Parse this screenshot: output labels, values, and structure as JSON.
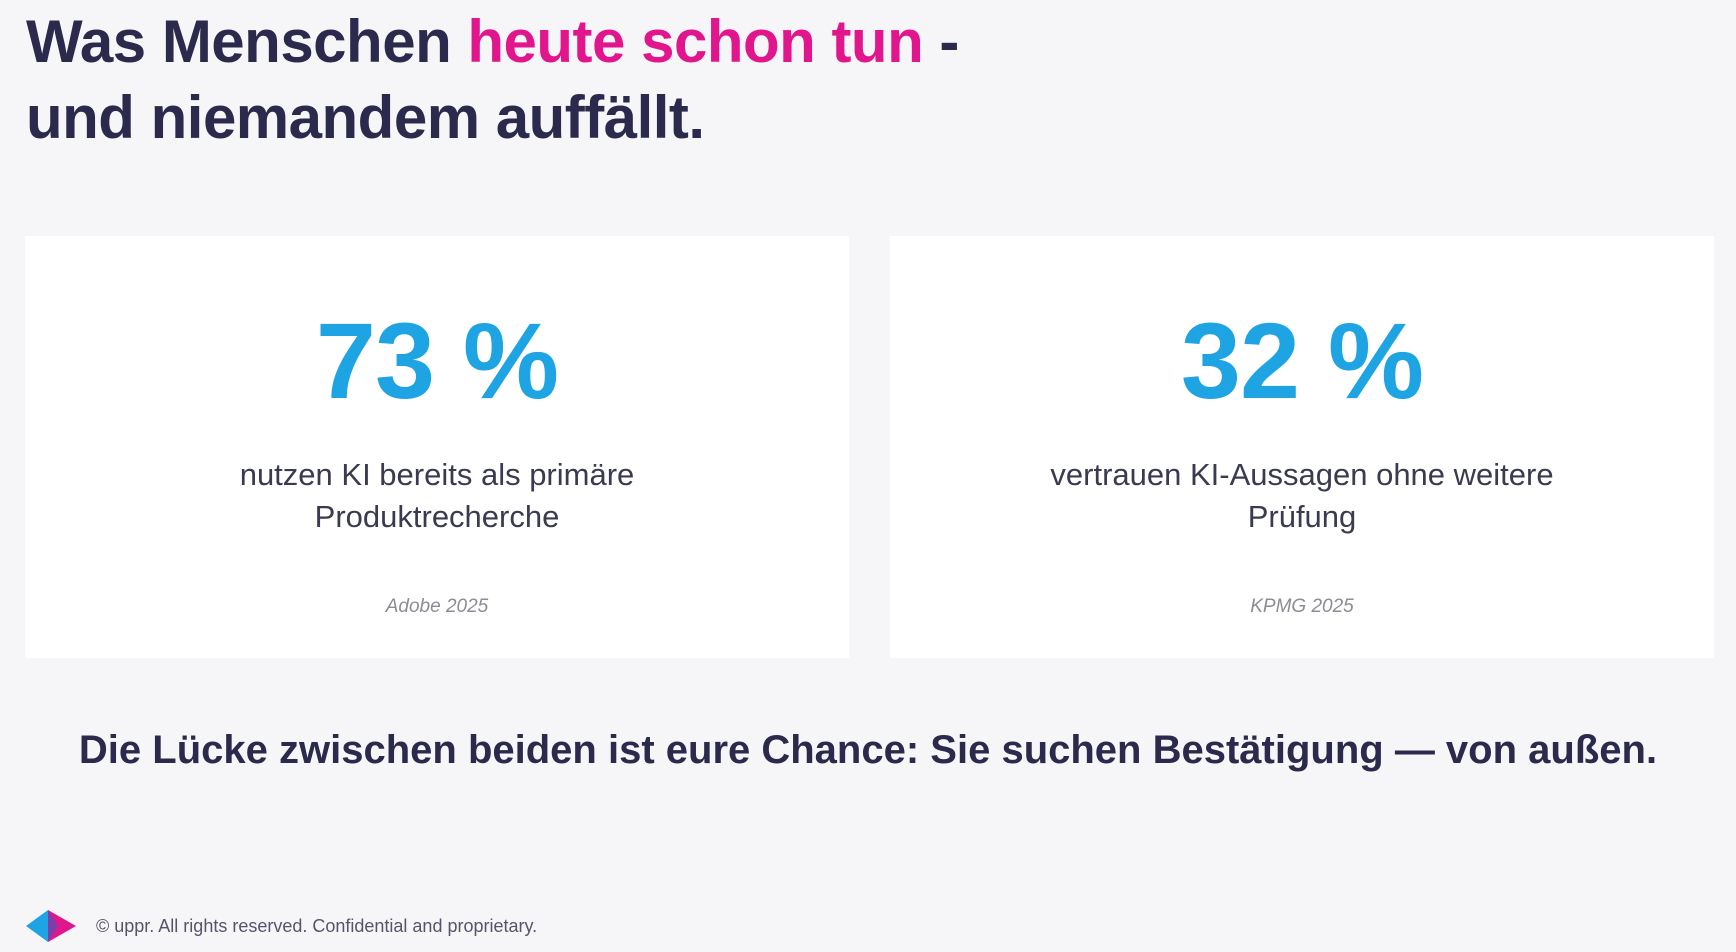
{
  "heading": {
    "line1_prefix": "Was Menschen ",
    "line1_accent": "heute schon tun",
    "line1_suffix": " -",
    "line2": "und niemandem auffällt."
  },
  "stats": [
    {
      "value": "73 %",
      "description_line1": "nutzen KI bereits als primäre",
      "description_line2": "Produktrecherche",
      "source": "Adobe 2025"
    },
    {
      "value": "32 %",
      "description_line1": "vertrauen KI-Aussagen ohne weitere",
      "description_line2": "Prüfung",
      "source": "KPMG 2025"
    }
  ],
  "tagline": "Die Lücke zwischen beiden ist eure Chance: Sie suchen Bestätigung — von außen.",
  "footer": {
    "copyright": "© uppr.  All rights reserved. Confidential and proprietary.",
    "logo_icon": "uppr-triangle-logo-icon"
  },
  "colors": {
    "background": "#f6f6f9",
    "text_dark": "#2b2a4c",
    "accent_pink": "#e2168c",
    "stat_blue": "#1ea4e3",
    "card_background": "#ffffff"
  }
}
